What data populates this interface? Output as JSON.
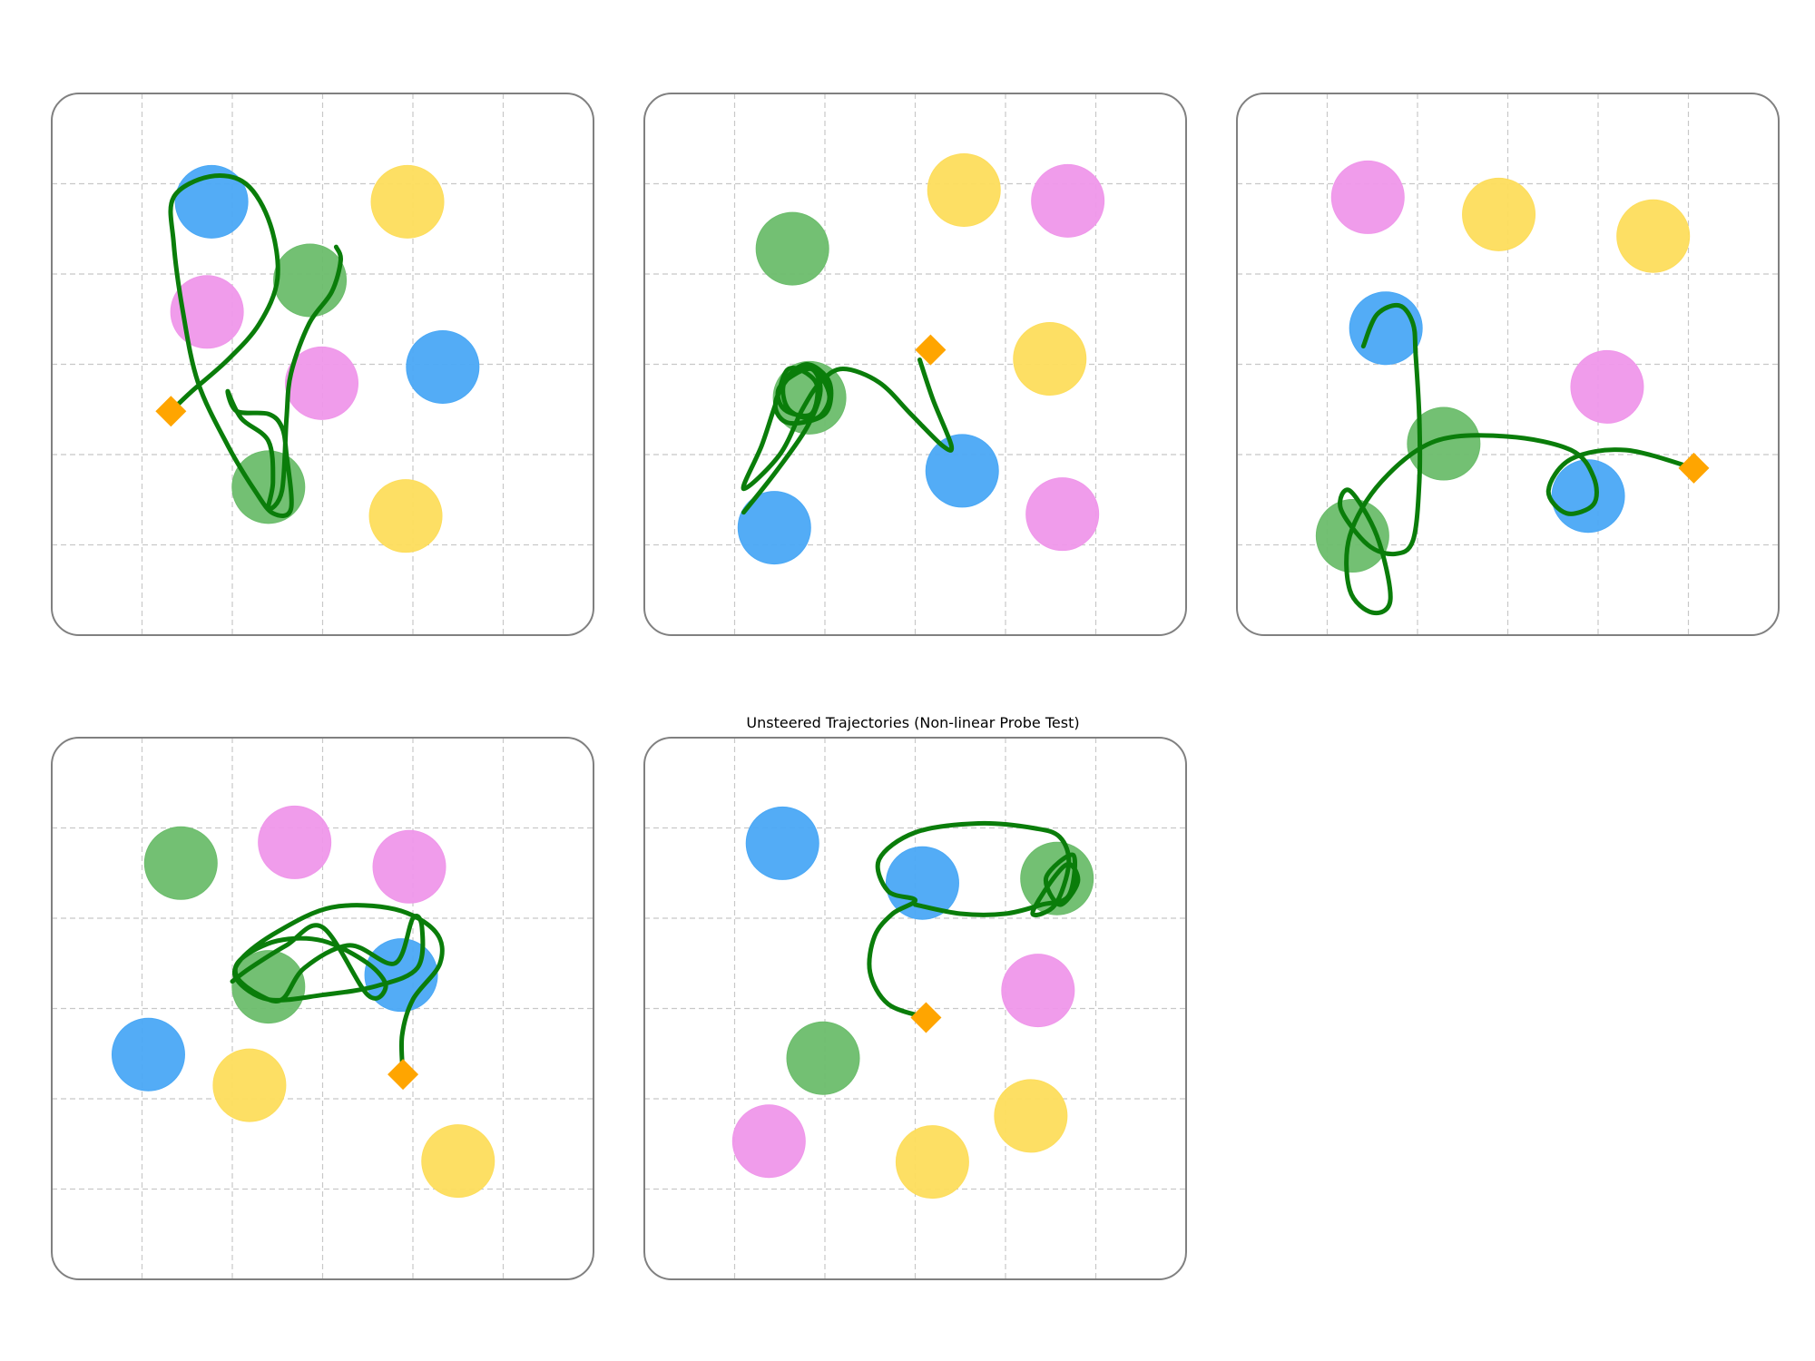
{
  "figure": {
    "title": "Unsteered Trajectories (Non-linear Probe Test)"
  },
  "colors": {
    "blue": "#4aa8f5",
    "green": "#6cbd6c",
    "pink": "#ef97ea",
    "yellow": "#fddd5c",
    "trajectory": "#0a7d0a",
    "start_marker": "#ffa500",
    "grid": "#c8c8c8",
    "frame": "#808080"
  },
  "grid_cells": 6,
  "panels": [
    {
      "id": 1,
      "objects": [
        {
          "color": "blue",
          "x": 1.77,
          "y": 1.2
        },
        {
          "color": "yellow",
          "x": 3.94,
          "y": 1.2
        },
        {
          "color": "green",
          "x": 2.86,
          "y": 2.07
        },
        {
          "color": "pink",
          "x": 1.72,
          "y": 2.42
        },
        {
          "color": "blue",
          "x": 4.33,
          "y": 3.03
        },
        {
          "color": "pink",
          "x": 2.99,
          "y": 3.21
        },
        {
          "color": "green",
          "x": 2.4,
          "y": 4.36
        },
        {
          "color": "yellow",
          "x": 3.92,
          "y": 4.68
        }
      ],
      "start": {
        "x": 1.32,
        "y": 3.52
      },
      "trajectory": [
        [
          1.32,
          3.52
        ],
        [
          1.55,
          3.3
        ],
        [
          1.95,
          2.95
        ],
        [
          2.3,
          2.55
        ],
        [
          2.5,
          2.05
        ],
        [
          2.42,
          1.45
        ],
        [
          2.15,
          1.0
        ],
        [
          1.75,
          0.92
        ],
        [
          1.35,
          1.15
        ],
        [
          1.35,
          1.65
        ],
        [
          1.45,
          2.4
        ],
        [
          1.62,
          3.2
        ],
        [
          1.95,
          3.9
        ],
        [
          2.25,
          4.4
        ],
        [
          2.45,
          4.65
        ],
        [
          2.65,
          4.6
        ],
        [
          2.6,
          4.0
        ],
        [
          2.55,
          3.7
        ],
        [
          2.4,
          3.55
        ],
        [
          2.05,
          3.52
        ],
        [
          1.95,
          3.3
        ],
        [
          2.1,
          3.6
        ],
        [
          2.4,
          3.85
        ],
        [
          2.45,
          4.3
        ],
        [
          2.4,
          4.6
        ],
        [
          2.55,
          4.4
        ],
        [
          2.6,
          3.6
        ],
        [
          2.65,
          3.1
        ],
        [
          2.85,
          2.55
        ],
        [
          3.1,
          2.2
        ],
        [
          3.2,
          1.85
        ],
        [
          3.15,
          1.7
        ]
      ]
    },
    {
      "id": 2,
      "objects": [
        {
          "color": "yellow",
          "x": 3.54,
          "y": 1.07
        },
        {
          "color": "pink",
          "x": 4.69,
          "y": 1.19
        },
        {
          "color": "green",
          "x": 1.64,
          "y": 1.72
        },
        {
          "color": "yellow",
          "x": 4.49,
          "y": 2.94
        },
        {
          "color": "green",
          "x": 1.83,
          "y": 3.37
        },
        {
          "color": "blue",
          "x": 3.52,
          "y": 4.18
        },
        {
          "color": "blue",
          "x": 1.44,
          "y": 4.81
        },
        {
          "color": "pink",
          "x": 4.63,
          "y": 4.66
        }
      ],
      "start": {
        "x": 3.17,
        "y": 2.84
      },
      "trajectory": [
        [
          1.1,
          4.64
        ],
        [
          1.45,
          4.2
        ],
        [
          1.8,
          3.7
        ],
        [
          1.95,
          3.3
        ],
        [
          1.85,
          3.05
        ],
        [
          1.6,
          3.15
        ],
        [
          1.45,
          3.45
        ],
        [
          1.6,
          3.65
        ],
        [
          2.0,
          3.55
        ],
        [
          2.05,
          3.2
        ],
        [
          1.8,
          3.0
        ],
        [
          1.55,
          3.2
        ],
        [
          1.6,
          3.5
        ],
        [
          1.9,
          3.6
        ],
        [
          2.05,
          3.35
        ],
        [
          1.85,
          3.05
        ],
        [
          1.5,
          3.25
        ],
        [
          1.55,
          3.5
        ],
        [
          1.85,
          3.55
        ],
        [
          1.9,
          3.2
        ],
        [
          1.6,
          3.05
        ],
        [
          1.45,
          3.45
        ],
        [
          1.3,
          3.9
        ],
        [
          1.1,
          4.38
        ],
        [
          1.5,
          4.0
        ],
        [
          1.75,
          3.5
        ],
        [
          1.95,
          3.2
        ],
        [
          2.2,
          3.05
        ],
        [
          2.6,
          3.2
        ],
        [
          2.95,
          3.55
        ],
        [
          3.3,
          3.9
        ],
        [
          3.4,
          3.9
        ],
        [
          3.2,
          3.4
        ],
        [
          3.05,
          2.95
        ]
      ]
    },
    {
      "id": 3,
      "objects": [
        {
          "color": "pink",
          "x": 1.45,
          "y": 1.15
        },
        {
          "color": "yellow",
          "x": 2.9,
          "y": 1.34
        },
        {
          "color": "yellow",
          "x": 4.61,
          "y": 1.58
        },
        {
          "color": "blue",
          "x": 1.65,
          "y": 2.6
        },
        {
          "color": "pink",
          "x": 4.1,
          "y": 3.25
        },
        {
          "color": "green",
          "x": 2.29,
          "y": 3.88
        },
        {
          "color": "blue",
          "x": 3.89,
          "y": 4.46
        },
        {
          "color": "green",
          "x": 1.28,
          "y": 4.9
        }
      ],
      "start": {
        "x": 5.06,
        "y": 4.15
      },
      "trajectory": [
        [
          1.4,
          2.8
        ],
        [
          1.55,
          2.45
        ],
        [
          1.8,
          2.35
        ],
        [
          1.95,
          2.55
        ],
        [
          1.98,
          2.9
        ],
        [
          2.02,
          3.6
        ],
        [
          2.02,
          4.3
        ],
        [
          1.95,
          4.95
        ],
        [
          1.75,
          5.1
        ],
        [
          1.45,
          5.0
        ],
        [
          1.15,
          4.6
        ],
        [
          1.25,
          4.4
        ],
        [
          1.55,
          4.9
        ],
        [
          1.7,
          5.6
        ],
        [
          1.5,
          5.75
        ],
        [
          1.25,
          5.5
        ],
        [
          1.25,
          4.9
        ],
        [
          1.6,
          4.3
        ],
        [
          2.2,
          3.85
        ],
        [
          3.0,
          3.8
        ],
        [
          3.7,
          3.95
        ],
        [
          3.95,
          4.25
        ],
        [
          3.95,
          4.55
        ],
        [
          3.65,
          4.65
        ],
        [
          3.45,
          4.4
        ],
        [
          3.7,
          4.05
        ],
        [
          4.3,
          3.95
        ],
        [
          5.06,
          4.15
        ]
      ]
    },
    {
      "id": 4,
      "objects": [
        {
          "color": "green",
          "x": 1.43,
          "y": 1.39
        },
        {
          "color": "pink",
          "x": 2.69,
          "y": 1.16
        },
        {
          "color": "pink",
          "x": 3.96,
          "y": 1.43
        },
        {
          "color": "green",
          "x": 2.4,
          "y": 2.76
        },
        {
          "color": "blue",
          "x": 3.87,
          "y": 2.63
        },
        {
          "color": "blue",
          "x": 1.07,
          "y": 3.51
        },
        {
          "color": "yellow",
          "x": 2.19,
          "y": 3.85
        },
        {
          "color": "yellow",
          "x": 4.5,
          "y": 4.69
        }
      ],
      "start": {
        "x": 3.89,
        "y": 3.73
      },
      "trajectory": [
        [
          3.89,
          3.73
        ],
        [
          3.88,
          3.3
        ],
        [
          4.0,
          2.9
        ],
        [
          4.3,
          2.5
        ],
        [
          4.25,
          2.15
        ],
        [
          3.8,
          1.9
        ],
        [
          3.1,
          1.88
        ],
        [
          2.5,
          2.15
        ],
        [
          2.1,
          2.45
        ],
        [
          2.05,
          2.68
        ],
        [
          2.4,
          2.9
        ],
        [
          3.0,
          2.85
        ],
        [
          3.6,
          2.75
        ],
        [
          4.05,
          2.55
        ],
        [
          4.1,
          2.1
        ],
        [
          4.0,
          2.0
        ],
        [
          3.8,
          2.5
        ],
        [
          3.3,
          2.3
        ],
        [
          2.8,
          2.55
        ],
        [
          2.55,
          2.9
        ],
        [
          2.3,
          2.85
        ],
        [
          2.05,
          2.65
        ],
        [
          2.1,
          2.45
        ],
        [
          2.5,
          2.25
        ],
        [
          3.0,
          2.25
        ],
        [
          3.5,
          2.5
        ],
        [
          3.7,
          2.75
        ],
        [
          3.5,
          2.85
        ],
        [
          3.0,
          2.1
        ],
        [
          2.6,
          2.3
        ],
        [
          2.2,
          2.55
        ],
        [
          2.0,
          2.7
        ]
      ]
    },
    {
      "id": 5,
      "objects": [
        {
          "color": "blue",
          "x": 1.53,
          "y": 1.17
        },
        {
          "color": "blue",
          "x": 3.08,
          "y": 1.61
        },
        {
          "color": "green",
          "x": 4.57,
          "y": 1.56
        },
        {
          "color": "pink",
          "x": 4.36,
          "y": 2.8
        },
        {
          "color": "green",
          "x": 1.98,
          "y": 3.55
        },
        {
          "color": "yellow",
          "x": 4.28,
          "y": 4.19
        },
        {
          "color": "pink",
          "x": 1.38,
          "y": 4.47
        },
        {
          "color": "yellow",
          "x": 3.19,
          "y": 4.7
        }
      ],
      "start": {
        "x": 3.12,
        "y": 3.1
      },
      "trajectory": [
        [
          3.12,
          3.1
        ],
        [
          2.7,
          2.95
        ],
        [
          2.5,
          2.6
        ],
        [
          2.55,
          2.2
        ],
        [
          2.75,
          1.95
        ],
        [
          3.0,
          1.8
        ],
        [
          2.7,
          1.7
        ],
        [
          2.6,
          1.35
        ],
        [
          3.0,
          1.05
        ],
        [
          3.7,
          0.95
        ],
        [
          4.3,
          1.0
        ],
        [
          4.6,
          1.1
        ],
        [
          4.7,
          1.4
        ],
        [
          4.55,
          1.85
        ],
        [
          4.3,
          1.95
        ],
        [
          4.5,
          1.6
        ],
        [
          4.7,
          1.4
        ],
        [
          4.8,
          1.6
        ],
        [
          4.6,
          1.85
        ],
        [
          4.45,
          1.55
        ],
        [
          4.75,
          1.3
        ],
        [
          4.7,
          1.75
        ],
        [
          4.4,
          1.85
        ],
        [
          4.0,
          1.95
        ],
        [
          3.5,
          1.95
        ],
        [
          3.0,
          1.85
        ]
      ]
    }
  ]
}
